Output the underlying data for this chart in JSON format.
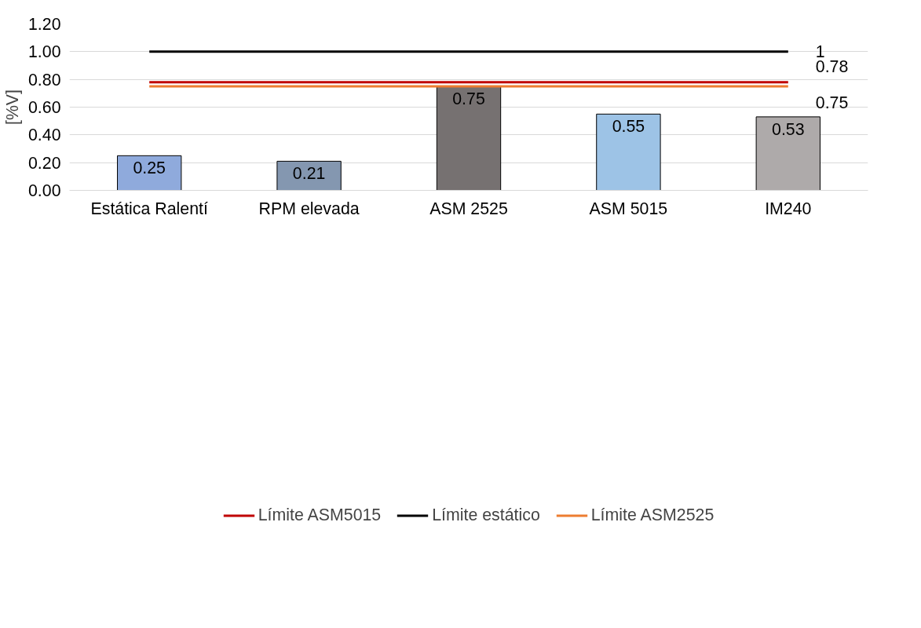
{
  "chart_data": {
    "type": "bar",
    "ylabel": "[%V]",
    "categories": [
      "Estática Ralentí",
      "RPM elevada",
      "ASM 2525",
      "ASM 5015",
      "IM240"
    ],
    "series": [
      {
        "colors": [
          "#8faadc",
          "#8497b0",
          "#767171",
          "#9dc3e6",
          "#aeaaaa"
        ],
        "values": [
          0.25,
          0.21,
          0.75,
          0.55,
          0.53
        ],
        "value_labels": [
          "0.25",
          "0.21",
          "0.75",
          "0.55",
          "0.53"
        ]
      },
      {
        "type": "line",
        "name": "Límite ASM5015",
        "color": "#c00000",
        "values": [
          0.78,
          0.78,
          0.78,
          0.78,
          0.78
        ],
        "value_labels": [
          null,
          null,
          null,
          null,
          "0.78"
        ]
      },
      {
        "type": "line",
        "name": "Límite estático",
        "color": "#000000",
        "values": [
          1,
          1,
          1,
          1,
          1
        ],
        "value_labels": [
          null,
          null,
          null,
          null,
          "1"
        ]
      },
      {
        "type": "line",
        "name": "Límite ASM2525",
        "color": "#ed7d31",
        "values": [
          0.75,
          0.75,
          0.75,
          0.75,
          0.75
        ],
        "value_labels": [
          null,
          null,
          null,
          null,
          "0.75"
        ]
      }
    ],
    "ylim": [
      0,
      1.2
    ],
    "yticks": [
      {
        "value": 0,
        "label": "0.00"
      },
      {
        "value": 0.2,
        "label": "0.20"
      },
      {
        "value": 0.4,
        "label": "0.40"
      },
      {
        "value": 0.6,
        "label": "0.60"
      },
      {
        "value": 0.8,
        "label": "0.80"
      },
      {
        "value": 1.0,
        "label": "1.00"
      },
      {
        "value": 1.2,
        "label": "1.20"
      }
    ],
    "grid": "y",
    "legend": "bottom"
  }
}
